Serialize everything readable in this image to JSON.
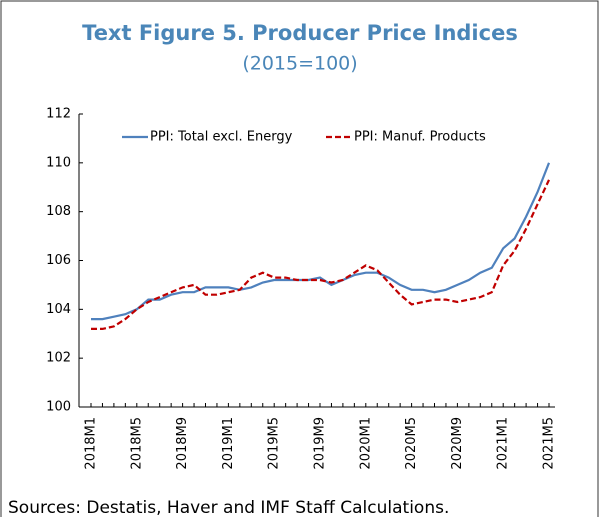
{
  "chart_data": {
    "type": "line",
    "title": "Text Figure 5. Producer Price Indices",
    "subtitle": "(2015=100)",
    "source": "Sources: Destatis, Haver and IMF Staff Calculations.",
    "categories": [
      "2018M1",
      null,
      null,
      null,
      "2018M5",
      null,
      null,
      null,
      "2018M9",
      null,
      null,
      null,
      "2019M1",
      null,
      null,
      null,
      "2019M5",
      null,
      null,
      null,
      "2019M9",
      null,
      null,
      null,
      "2020M1",
      null,
      null,
      null,
      "2020M5",
      null,
      null,
      null,
      "2020M9",
      null,
      null,
      null,
      "2021M1",
      null,
      null,
      null,
      "2021M5"
    ],
    "series": [
      {
        "name": "PPI: Total excl. Energy",
        "color": "#4f81bd",
        "dash": "solid",
        "values": [
          103.6,
          103.6,
          103.7,
          103.8,
          104.0,
          104.4,
          104.4,
          104.6,
          104.7,
          104.7,
          104.9,
          104.9,
          104.9,
          104.8,
          104.9,
          105.1,
          105.2,
          105.2,
          105.2,
          105.2,
          105.3,
          105.0,
          105.2,
          105.4,
          105.5,
          105.5,
          105.3,
          105.0,
          104.8,
          104.8,
          104.7,
          104.8,
          105.0,
          105.2,
          105.5,
          105.7,
          106.5,
          106.9,
          107.8,
          108.8,
          110.0
        ]
      },
      {
        "name": "PPI: Manuf. Products",
        "color": "#c00000",
        "dash": "dashed",
        "values": [
          103.2,
          103.2,
          103.3,
          103.6,
          104.0,
          104.3,
          104.5,
          104.7,
          104.9,
          105.0,
          104.6,
          104.6,
          104.7,
          104.8,
          105.3,
          105.5,
          105.3,
          105.3,
          105.2,
          105.2,
          105.2,
          105.1,
          105.2,
          105.5,
          105.8,
          105.6,
          105.1,
          104.6,
          104.2,
          104.3,
          104.4,
          104.4,
          104.3,
          104.4,
          104.5,
          104.7,
          105.8,
          106.4,
          107.3,
          108.3,
          109.3
        ]
      }
    ],
    "ylim": [
      100,
      112
    ],
    "yticks": [
      100,
      102,
      104,
      106,
      108,
      110,
      112
    ],
    "grid": false,
    "legend": "upper center"
  }
}
